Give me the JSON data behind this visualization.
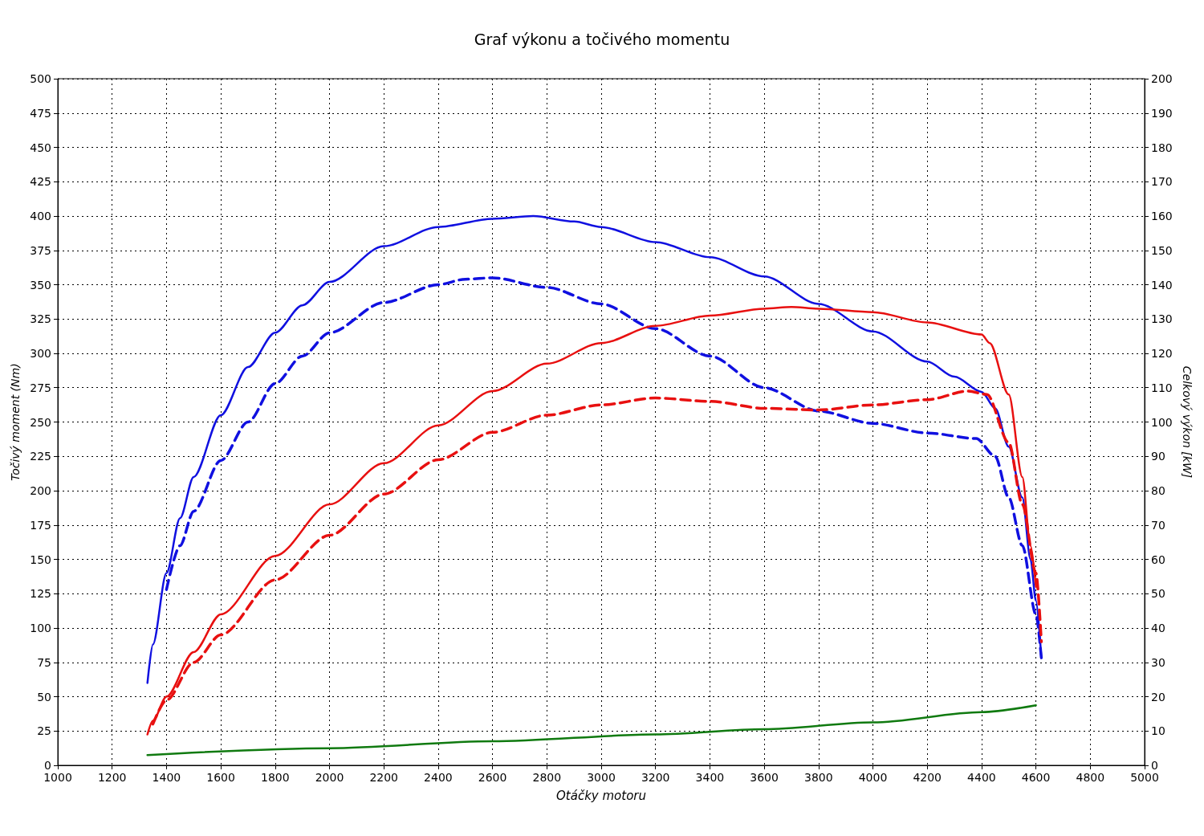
{
  "chart_data": {
    "type": "line",
    "title": "Graf výkonu a točivého momentu",
    "xlabel": "Otáčky motoru",
    "ylabel": "Točivý moment (Nm)",
    "y2label": "Celkový výkon [kW]",
    "xlim": [
      1000,
      5000
    ],
    "xticks": [
      1000,
      1200,
      1400,
      1600,
      1800,
      2000,
      2200,
      2400,
      2600,
      2800,
      3000,
      3200,
      3400,
      3600,
      3800,
      4000,
      4200,
      4400,
      4600,
      4800,
      5000
    ],
    "ylim": [
      0,
      500
    ],
    "yticks": [
      0,
      25,
      50,
      75,
      100,
      125,
      150,
      175,
      200,
      225,
      250,
      275,
      300,
      325,
      350,
      375,
      400,
      425,
      450,
      475,
      500
    ],
    "y2lim": [
      0,
      200
    ],
    "y2ticks": [
      0,
      10,
      20,
      30,
      40,
      50,
      60,
      70,
      80,
      90,
      100,
      110,
      120,
      130,
      140,
      150,
      160,
      170,
      180,
      190,
      200
    ],
    "grid": true,
    "marker": "none",
    "series": [
      {
        "color": "#1010e0",
        "line_style": "solid",
        "x": [
          1330,
          1350,
          1400,
          1450,
          1500,
          1600,
          1700,
          1800,
          1900,
          2000,
          2200,
          2400,
          2600,
          2750,
          2900,
          3000,
          3200,
          3400,
          3600,
          3800,
          4000,
          4200,
          4300,
          4400,
          4450,
          4500,
          4550,
          4580,
          4600,
          4620
        ],
        "values": [
          60,
          88,
          140,
          180,
          210,
          255,
          290,
          315,
          335,
          352,
          378,
          392,
          398,
          400,
          396,
          392,
          381,
          370,
          356,
          336,
          316,
          294,
          283,
          272,
          260,
          232,
          195,
          150,
          120,
          78
        ]
      },
      {
        "color": "#1010e0",
        "line_style": "dashed",
        "x": [
          1400,
          1450,
          1500,
          1600,
          1700,
          1800,
          1900,
          2000,
          2200,
          2400,
          2500,
          2600,
          2800,
          3000,
          3200,
          3400,
          3600,
          3800,
          4000,
          4200,
          4380,
          4450,
          4500,
          4550,
          4600,
          4620
        ],
        "values": [
          128,
          160,
          185,
          222,
          250,
          278,
          298,
          315,
          337,
          350,
          354,
          355,
          348,
          336,
          318,
          298,
          275,
          258,
          249,
          242,
          238,
          225,
          195,
          160,
          110,
          78
        ]
      },
      {
        "color": "#e81010",
        "line_style": "solid",
        "axis": "y2",
        "x": [
          1330,
          1350,
          1400,
          1500,
          1600,
          1800,
          2000,
          2200,
          2400,
          2600,
          2800,
          3000,
          3200,
          3400,
          3600,
          3700,
          3800,
          4000,
          4200,
          4400,
          4430,
          4500,
          4550,
          4580,
          4600
        ],
        "values": [
          9,
          13,
          20,
          33,
          44,
          61,
          76,
          88,
          99,
          109,
          117,
          123,
          128,
          131,
          133,
          133.5,
          133,
          132,
          129,
          125.5,
          123,
          108,
          84,
          64,
          52
        ]
      },
      {
        "color": "#e81010",
        "line_style": "dashed",
        "axis": "y2",
        "x": [
          1350,
          1400,
          1500,
          1600,
          1800,
          2000,
          2200,
          2400,
          2600,
          2800,
          3000,
          3200,
          3400,
          3600,
          3800,
          4000,
          4200,
          4350,
          4420,
          4500,
          4550,
          4600,
          4620
        ],
        "values": [
          12,
          19,
          30,
          38,
          54,
          67,
          79,
          89,
          97,
          102,
          105,
          107,
          106,
          104,
          103.5,
          105,
          106.5,
          109,
          108,
          94,
          76,
          56,
          36
        ]
      },
      {
        "color": "#107a10",
        "line_style": "solid",
        "axis": "y2",
        "x": [
          1330,
          2000,
          2600,
          3200,
          3600,
          4000,
          4400,
          4600
        ],
        "values": [
          3,
          5,
          7,
          9,
          10.5,
          12.5,
          15.5,
          17.5
        ]
      }
    ]
  }
}
